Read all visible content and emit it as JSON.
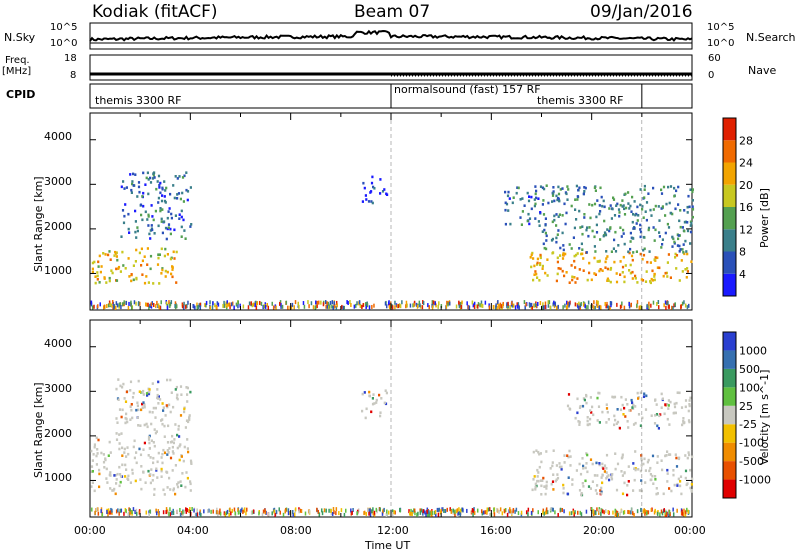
{
  "header": {
    "station": "Kodiak (fitACF)",
    "beam": "Beam 07",
    "date": "09/Jan/2016"
  },
  "noise_panel": {
    "left_label": "N.Sky",
    "left_ticks": [
      "10^5",
      "10^0"
    ],
    "right_label": "N.Search",
    "right_ticks": [
      "10^5",
      "10^0"
    ]
  },
  "freq_panel": {
    "left_label_line1": "Freq.",
    "left_label_line2": "[MHz]",
    "left_ticks": [
      "18",
      "8"
    ],
    "right_label": "Nave",
    "right_ticks": [
      "60",
      "0"
    ]
  },
  "cpid_panel": {
    "label": "CPID",
    "programs": [
      "themis 3300 RF",
      "normalsound (fast) 157 RF",
      "themis 3300 RF"
    ]
  },
  "x_axis": {
    "label": "Time UT",
    "ticks": [
      "00:00",
      "04:00",
      "08:00",
      "12:00",
      "16:00",
      "20:00",
      "00:00"
    ]
  },
  "power_panel": {
    "ylabel": "Slant Range [km]",
    "yticks": [
      "1000",
      "2000",
      "3000",
      "4000"
    ],
    "colorbar_label": "Power [dB]",
    "colorbar_ticks": [
      "4",
      "8",
      "12",
      "16",
      "20",
      "24",
      "28"
    ],
    "colors": [
      "#1a1aff",
      "#2a50b8",
      "#3a7f8a",
      "#54a050",
      "#c8c820",
      "#f2a400",
      "#f06a00",
      "#e02000"
    ]
  },
  "velocity_panel": {
    "ylabel": "Slant Range [km]",
    "yticks": [
      "1000",
      "2000",
      "3000",
      "4000"
    ],
    "colorbar_label": "Velocity [m s^-1]",
    "colorbar_ticks": [
      "1000",
      "500",
      "100",
      "25",
      "-25",
      "-100",
      "-500",
      "-1000"
    ],
    "colors": [
      "#2a3fd0",
      "#3670b0",
      "#3a9a60",
      "#60c040",
      "#c8c8c0",
      "#f2c000",
      "#f08c00",
      "#e85000",
      "#e00000"
    ]
  },
  "chart_data": {
    "type": "heatmap",
    "x_range_hours": [
      0,
      24
    ],
    "y_range_km": [
      180,
      4600
    ],
    "cpid_changes_hours": [
      12,
      22
    ],
    "power_echo_regions": [
      {
        "t": [
          0.0,
          3.5
        ],
        "range_km": [
          800,
          1600
        ],
        "power_db": 22
      },
      {
        "t": [
          1.2,
          4.0
        ],
        "range_km": [
          1800,
          3300
        ],
        "power_db": 10
      },
      {
        "t": [
          10.8,
          11.8
        ],
        "range_km": [
          2600,
          3200
        ],
        "power_db": 8
      },
      {
        "t": [
          16.5,
          18.0
        ],
        "range_km": [
          2100,
          3000
        ],
        "power_db": 10
      },
      {
        "t": [
          17.5,
          24.0
        ],
        "range_km": [
          800,
          1500
        ],
        "power_db": 24
      },
      {
        "t": [
          18.0,
          24.0
        ],
        "range_km": [
          1500,
          3000
        ],
        "power_db": 12
      }
    ],
    "velocity_echo_regions": [
      {
        "t": [
          0.0,
          4.0
        ],
        "range_km": [
          700,
          2000
        ],
        "velocity": 0
      },
      {
        "t": [
          1.0,
          4.0
        ],
        "range_km": [
          2000,
          3300
        ],
        "velocity": 50
      },
      {
        "t": [
          10.8,
          11.8
        ],
        "range_km": [
          2400,
          3100
        ],
        "velocity": -100
      },
      {
        "t": [
          17.5,
          24.0
        ],
        "range_km": [
          700,
          1700
        ],
        "velocity": 0
      },
      {
        "t": [
          19.0,
          24.0
        ],
        "range_km": [
          2200,
          3000
        ],
        "velocity": -200
      }
    ]
  }
}
